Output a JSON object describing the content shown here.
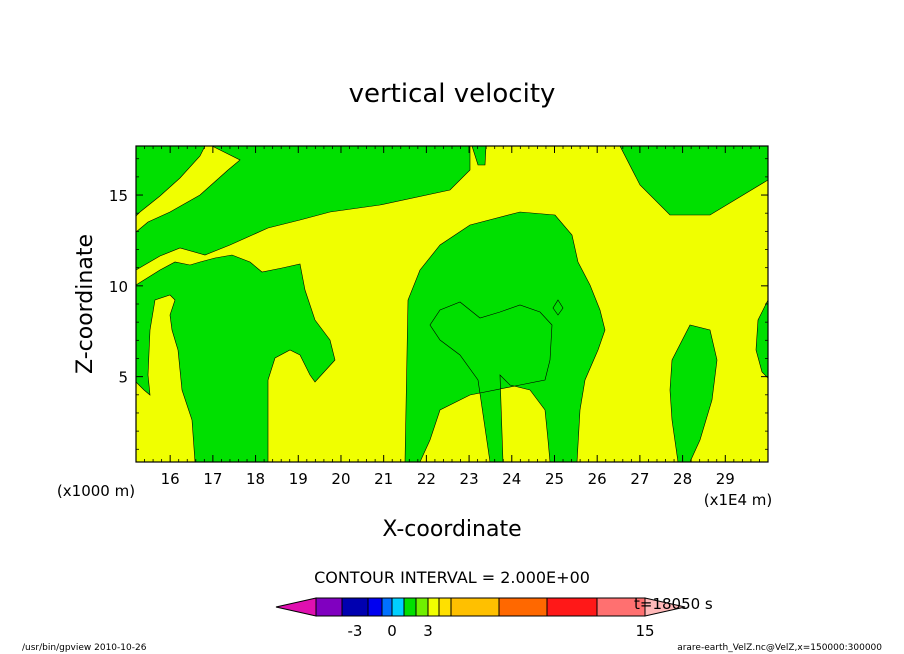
{
  "chart_data": {
    "type": "heatmap",
    "title": "vertical velocity",
    "xlabel": "X-coordinate",
    "ylabel": "Z-coordinate",
    "x_units_left": "(x1000 m)",
    "x_units_right": "(x1E4 m)",
    "x_ticks": [
      "16",
      "17",
      "18",
      "19",
      "20",
      "21",
      "22",
      "23",
      "24",
      "25",
      "26",
      "27",
      "28",
      "29"
    ],
    "y_ticks": [
      "5",
      "10",
      "15"
    ],
    "xlim": [
      15.2,
      30.0
    ],
    "ylim": [
      0.3,
      17.7
    ],
    "contour_interval": "CONTOUR INTERVAL = 2.000E+00",
    "time_label": "t=18050 s",
    "colorbar_ticks": [
      {
        "label": "-3",
        "value": -3
      },
      {
        "label": "0",
        "value": 0
      },
      {
        "label": "3",
        "value": 3
      },
      {
        "label": "15",
        "value": 15
      }
    ],
    "colorbar_colors": [
      "#e010b0",
      "#8000c0",
      "#0000b0",
      "#0000f0",
      "#0070ff",
      "#00d0ff",
      "#00e000",
      "#70f000",
      "#f0ff00",
      "#ffe000",
      "#ffc000",
      "#ff6800",
      "#ff1818",
      "#ff7070",
      "#ffb8b8"
    ],
    "field_colors": {
      "negative": "#00e000",
      "positive": "#f0ff00"
    },
    "footer_left": "/usr/bin/gpview   2010-10-26",
    "footer_right": "arare-earth_VelZ.nc@VelZ,x=150000:300000"
  }
}
